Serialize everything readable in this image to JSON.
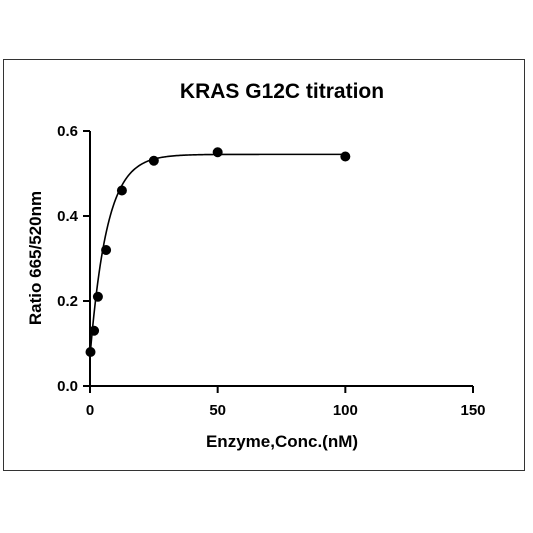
{
  "chart_data": {
    "type": "scatter",
    "title": "KRAS G12C titration",
    "xlabel": "Enzyme,Conc.(nM)",
    "ylabel": "Ratio 665/520nm",
    "xlim": [
      0,
      150
    ],
    "ylim": [
      0,
      0.6
    ],
    "xticks": [
      0,
      50,
      100,
      150
    ],
    "yticks": [
      0.0,
      0.2,
      0.4,
      0.6
    ],
    "xtick_labels": [
      "0",
      "50",
      "100",
      "150"
    ],
    "ytick_labels": [
      "0.0",
      "0.2",
      "0.4",
      "0.6"
    ],
    "grid": false,
    "legend": "none",
    "series": [
      {
        "x": [
          0.2,
          1.6,
          3.1,
          6.3,
          12.5,
          25,
          50,
          100
        ],
        "y": [
          0.08,
          0.13,
          0.21,
          0.32,
          0.46,
          0.53,
          0.55,
          0.54
        ]
      }
    ],
    "fit": {
      "model": "one-phase association",
      "plateau": 0.545,
      "y0": 0.07,
      "k": 0.15,
      "x_range": [
        0,
        100
      ]
    },
    "colors": {
      "points": "#000000",
      "line": "#000000"
    }
  }
}
